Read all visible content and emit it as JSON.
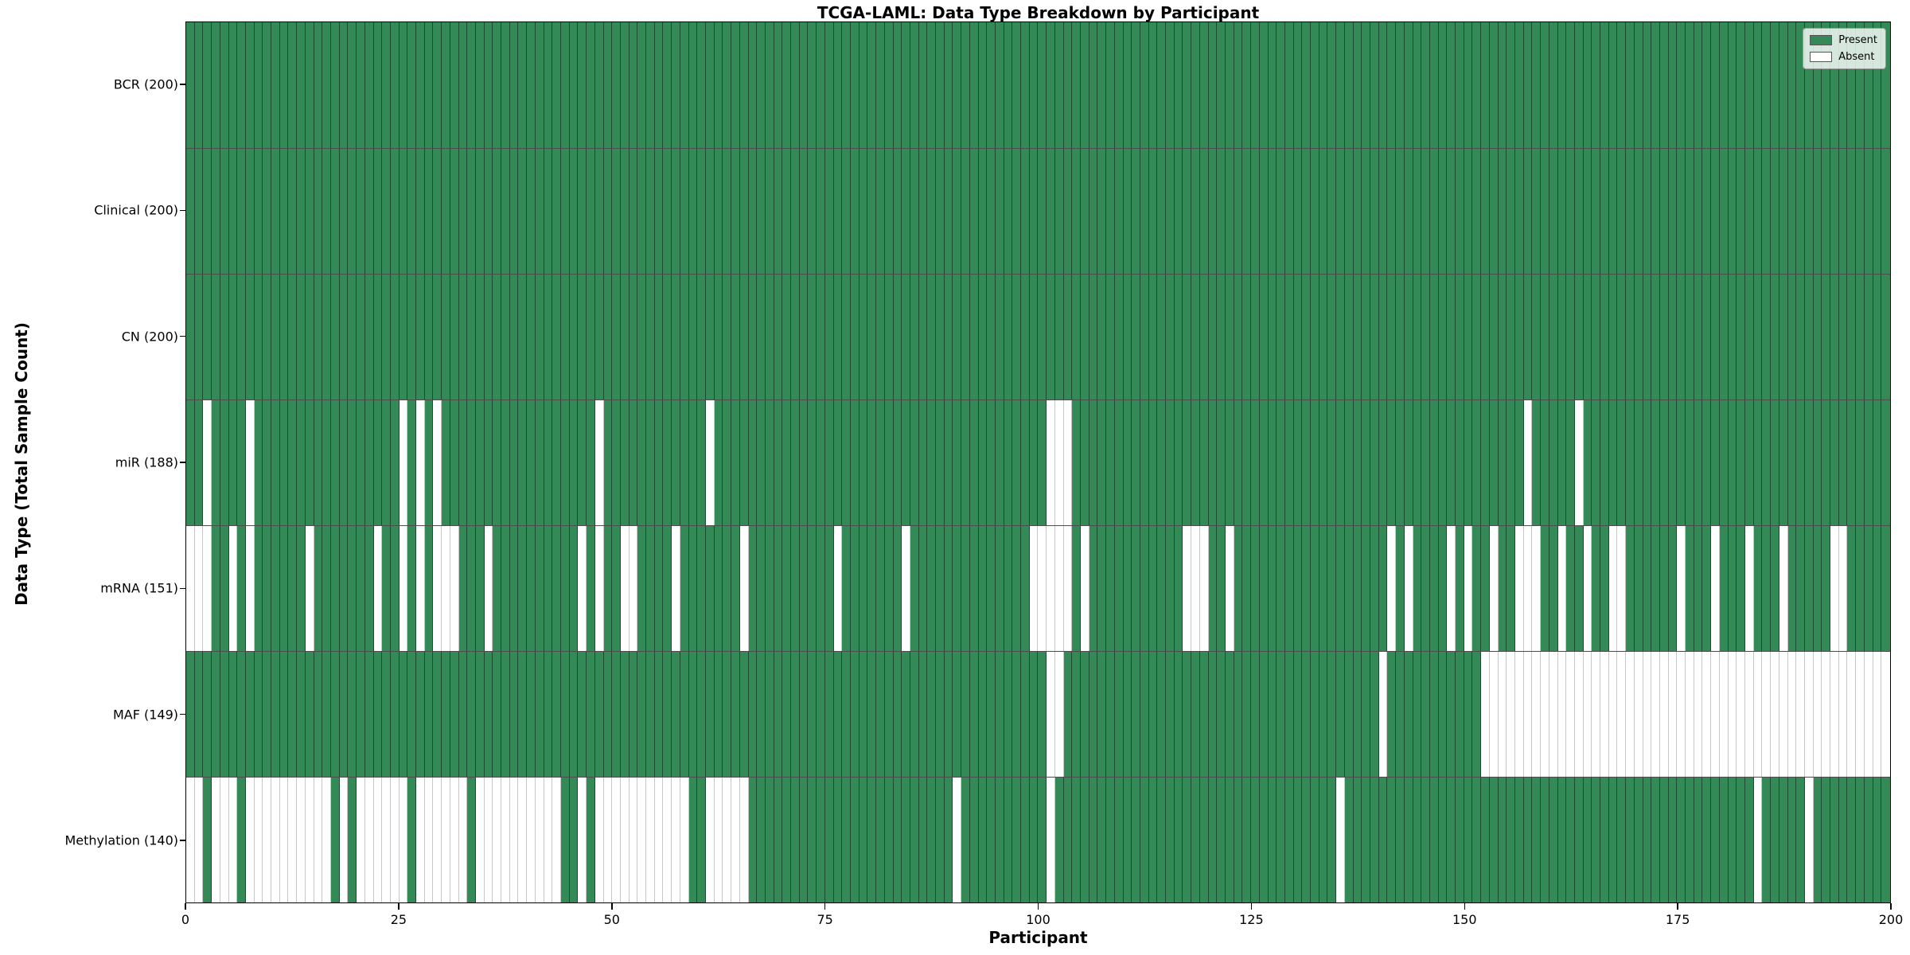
{
  "title": "TCGA-LAML: Data Type Breakdown by Participant",
  "xlabel": "Participant",
  "ylabel": "Data Type (Total Sample Count)",
  "legend": {
    "present_label": "Present",
    "absent_label": "Absent"
  },
  "colors": {
    "present": "#338a57",
    "absent": "#ffffff",
    "cell_border": "rgba(0,0,0,0.45)",
    "axis": "#000000"
  },
  "chart_data": {
    "type": "heatmap",
    "title": "TCGA-LAML: Data Type Breakdown by Participant",
    "xlabel": "Participant",
    "ylabel": "Data Type (Total Sample Count)",
    "x_range": [
      0,
      200
    ],
    "n_participants": 200,
    "x_ticks": [
      0,
      25,
      50,
      75,
      100,
      125,
      150,
      175,
      200
    ],
    "legend_position": "upper right",
    "states": {
      "present": 1,
      "absent": 0
    },
    "rows": [
      {
        "label": "BCR (200)",
        "data_type": "BCR",
        "total_count": 200,
        "absent_participants": []
      },
      {
        "label": "Clinical (200)",
        "data_type": "Clinical",
        "total_count": 200,
        "absent_participants": []
      },
      {
        "label": "CN (200)",
        "data_type": "CN",
        "total_count": 200,
        "absent_participants": []
      },
      {
        "label": "miR (188)",
        "data_type": "miR",
        "total_count": 188,
        "absent_participants": [
          2,
          7,
          25,
          27,
          29,
          48,
          61,
          101,
          102,
          103,
          157,
          163
        ]
      },
      {
        "label": "mRNA (151)",
        "data_type": "mRNA",
        "total_count": 151,
        "absent_participants": [
          0,
          1,
          2,
          5,
          7,
          14,
          22,
          25,
          27,
          29,
          30,
          31,
          35,
          46,
          48,
          51,
          52,
          57,
          65,
          76,
          84,
          99,
          100,
          101,
          102,
          103,
          105,
          117,
          118,
          119,
          122,
          141,
          143,
          148,
          150,
          153,
          156,
          157,
          158,
          161,
          164,
          167,
          168,
          175,
          179,
          183,
          187,
          193,
          194
        ]
      },
      {
        "label": "MAF (149)",
        "data_type": "MAF",
        "total_count": 149,
        "absent_participants": [
          101,
          102,
          140,
          152,
          153,
          154,
          155,
          156,
          157,
          158,
          159,
          160,
          161,
          162,
          163,
          164,
          165,
          166,
          167,
          168,
          169,
          170,
          171,
          172,
          173,
          174,
          175,
          176,
          177,
          178,
          179,
          180,
          181,
          182,
          183,
          184,
          185,
          186,
          187,
          188,
          189,
          190,
          191,
          192,
          193,
          194,
          195,
          196,
          197,
          198,
          199
        ]
      },
      {
        "label": "Methylation (140)",
        "data_type": "Methylation",
        "total_count": 140,
        "absent_participants": [
          0,
          1,
          3,
          4,
          5,
          7,
          8,
          9,
          10,
          11,
          12,
          13,
          14,
          15,
          16,
          18,
          20,
          21,
          22,
          23,
          24,
          25,
          27,
          28,
          29,
          30,
          31,
          32,
          34,
          35,
          36,
          37,
          38,
          39,
          40,
          41,
          42,
          43,
          46,
          48,
          49,
          50,
          51,
          52,
          53,
          54,
          55,
          56,
          57,
          58,
          61,
          62,
          63,
          64,
          65,
          90,
          101,
          135,
          184,
          190
        ]
      }
    ]
  }
}
